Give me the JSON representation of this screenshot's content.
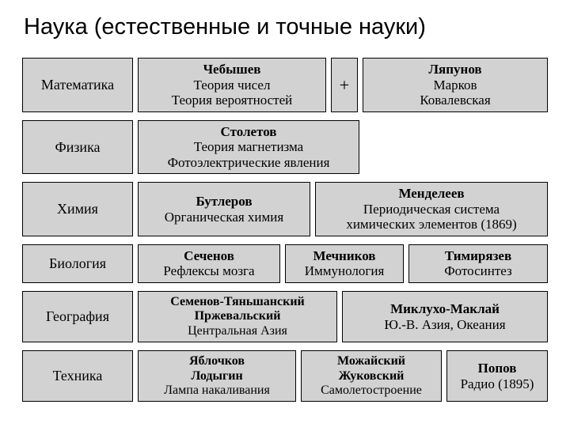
{
  "title": "Наука (естественные и точные науки)",
  "colors": {
    "cell_bg": "#d2d2d2",
    "border": "#000000",
    "page_bg": "#ffffff",
    "text": "#000000"
  },
  "rows": {
    "math": {
      "label": "Математика",
      "main": {
        "bold": "Чебышев",
        "line1": "Теория чисел",
        "line2": "Теория вероятностей"
      },
      "plus": "+",
      "right": {
        "bold": "Ляпунов",
        "line1": "Марков",
        "line2": "Ковалевская"
      }
    },
    "physics": {
      "label": "Физика",
      "main": {
        "bold": "Столетов",
        "line1": "Теория магнетизма",
        "line2": "Фотоэлектрические явления"
      }
    },
    "chemistry": {
      "label": "Химия",
      "main": {
        "bold": "Бутлеров",
        "line1": "Органическая химия"
      },
      "right": {
        "bold": "Менделеев",
        "line1": "Периодическая система",
        "line2": "химических элементов (1869)"
      }
    },
    "biology": {
      "label": "Биология",
      "a": {
        "bold": "Сеченов",
        "line1": "Рефлексы мозга"
      },
      "b": {
        "bold": "Мечников",
        "line1": "Иммунология"
      },
      "c": {
        "bold": "Тимирязев",
        "line1": "Фотосинтез"
      }
    },
    "geography": {
      "label": "География",
      "a": {
        "bold1": "Семенов-Тяньшанский",
        "bold2": "Пржевальский",
        "line1": "Центральная Азия"
      },
      "b": {
        "bold": "Миклухо-Маклай",
        "line1": "Ю.-В. Азия, Океания"
      }
    },
    "technics": {
      "label": "Техника",
      "a": {
        "bold1": "Яблочков",
        "bold2": "Лодыгин",
        "line1": "Лампа накаливания"
      },
      "b": {
        "bold1": "Можайский",
        "bold2": "Жуковский",
        "line1": "Самолетостроение"
      },
      "c": {
        "bold": "Попов",
        "line1": "Радио (1895)"
      }
    }
  }
}
